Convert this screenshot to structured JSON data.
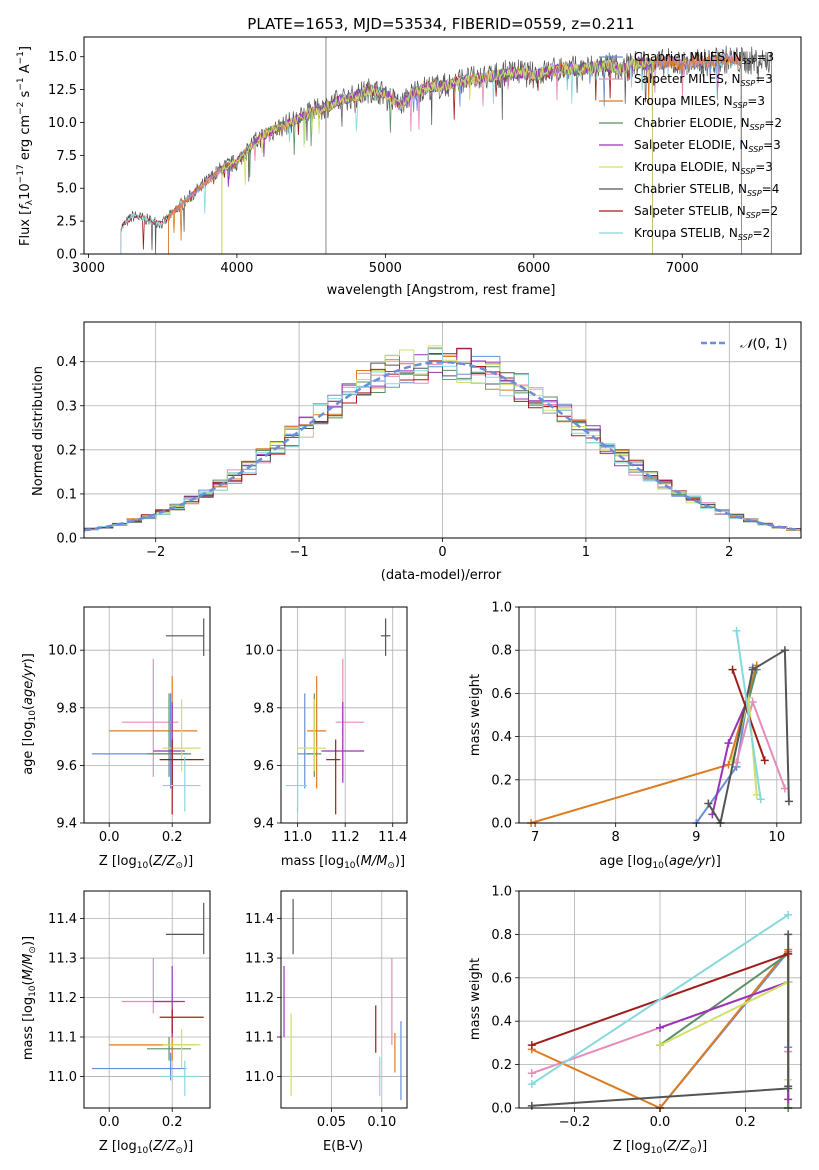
{
  "colors": {
    "Chabrier MILES": "#6a8fd8",
    "Salpeter MILES": "#e58cb9",
    "Kroupa MILES": "#dd7b22",
    "Chabrier ELODIE": "#5b8f66",
    "Salpeter ELODIE": "#9b33b8",
    "Kroupa ELODIE": "#cfe169",
    "Chabrier STELIB": "#555555",
    "Salpeter STELIB": "#a01c1c",
    "Kroupa STELIB": "#86d8df",
    "gauss": "#6a8fd8",
    "grid": "#b0b0b0"
  },
  "chart_data": [
    {
      "type": "line",
      "title": "PLATE=1653, MJD=53534, FIBERID=0559, z=0.211",
      "xlabel": "wavelength [Angstrom, rest frame]",
      "ylabel": "Flux [f_λ 10^-17 erg cm^-2 s^-1 A^-1]",
      "xlim": [
        2970,
        7800
      ],
      "ylim": [
        0,
        16.5
      ],
      "xticks": [
        "3000",
        "4000",
        "5000",
        "6000",
        "7000"
      ],
      "yticks": [
        "0.0",
        "2.5",
        "5.0",
        "7.5",
        "10.0",
        "12.5",
        "15.0"
      ],
      "spectrum_envelope": {
        "x": [
          3220,
          3300,
          3400,
          3500,
          3600,
          3700,
          3800,
          3900,
          4000,
          4100,
          4200,
          4300,
          4400,
          4500,
          4600,
          4700,
          4800,
          4900,
          5000,
          5100,
          5200,
          5300,
          5400,
          5500,
          5600,
          5700,
          5800,
          5900,
          6000,
          6100,
          6200,
          6300,
          6400,
          6500,
          6600,
          6700,
          6800,
          6900,
          7000,
          7100,
          7200,
          7300,
          7400
        ],
        "y": [
          2.0,
          2.9,
          2.6,
          2.3,
          3.5,
          4.5,
          5.5,
          6.5,
          7.0,
          8.3,
          9.2,
          9.7,
          10.2,
          10.8,
          11.2,
          11.7,
          12.0,
          12.5,
          12.2,
          11.3,
          12.4,
          12.7,
          12.8,
          13.2,
          13.3,
          13.5,
          13.7,
          13.8,
          13.6,
          13.9,
          14.1,
          14.0,
          14.2,
          14.3,
          14.1,
          14.5,
          14.4,
          14.6,
          14.4,
          14.5,
          14.6,
          14.8,
          14.7
        ]
      },
      "series": [
        {
          "name": "Chabrier MILES, N_SSP=3",
          "start": 3540,
          "end": 7400
        },
        {
          "name": "Salpeter MILES, N_SSP=3",
          "start": 3540,
          "end": 7400
        },
        {
          "name": "Kroupa MILES, N_SSP=3",
          "start": 3540,
          "end": 7400
        },
        {
          "name": "Chabrier ELODIE, N_SSP=2",
          "start": 3900,
          "end": 6800
        },
        {
          "name": "Salpeter ELODIE, N_SSP=3",
          "start": 3900,
          "end": 6800
        },
        {
          "name": "Kroupa ELODIE, N_SSP=3",
          "start": 3900,
          "end": 6800
        },
        {
          "name": "Chabrier STELIB, N_SSP=4",
          "start": 3220,
          "end": 7600
        },
        {
          "name": "Salpeter STELIB, N_SSP=2",
          "start": 3220,
          "end": 7400
        },
        {
          "name": "Kroupa STELIB, N_SSP=2",
          "start": 3220,
          "end": 7400
        }
      ],
      "legend": "top-right"
    },
    {
      "type": "line",
      "xlabel": "(data-model)/error",
      "ylabel": "Normed distribution",
      "xlim": [
        -2.5,
        2.5
      ],
      "ylim": [
        0,
        0.49
      ],
      "xticks": [
        "−2",
        "−1",
        "0",
        "1",
        "2"
      ],
      "yticks": [
        "0.0",
        "0.1",
        "0.2",
        "0.3",
        "0.4"
      ],
      "legend_entry": "N(0,1)",
      "legend": "top-right",
      "histogram_bin_width": 0.1
    },
    {
      "type": "scatter",
      "xlabel": "Z [log10(Z/Z⊙)]",
      "ylabel": "age [log10(age/yr)]",
      "xlim": [
        -0.08,
        0.32
      ],
      "ylim": [
        9.4,
        10.15
      ],
      "xticks": [
        "0.0",
        "0.2"
      ],
      "yticks": [
        "9.4",
        "9.6",
        "9.8",
        "10.0"
      ],
      "points": [
        {
          "series": "Chabrier MILES",
          "x": 0.195,
          "y": 9.64,
          "xerr": [
            0.25,
            0.05
          ],
          "yerr": [
            0.12,
            0.21
          ]
        },
        {
          "series": "Salpeter MILES",
          "x": 0.14,
          "y": 9.75,
          "xerr": [
            0.1,
            0.08
          ],
          "yerr": [
            0.19,
            0.22
          ]
        },
        {
          "series": "Kroupa MILES",
          "x": 0.2,
          "y": 9.72,
          "xerr": [
            0.2,
            0.08
          ],
          "yerr": [
            0.2,
            0.19
          ]
        },
        {
          "series": "Chabrier ELODIE",
          "x": 0.19,
          "y": 9.64,
          "xerr": [
            0.07,
            0.07
          ],
          "yerr": [
            0.08,
            0.21
          ]
        },
        {
          "series": "Salpeter ELODIE",
          "x": 0.2,
          "y": 9.65,
          "xerr": [
            0.06,
            0.04
          ],
          "yerr": [
            0.11,
            0.17
          ]
        },
        {
          "series": "Kroupa ELODIE",
          "x": 0.23,
          "y": 9.66,
          "xerr": [
            0.06,
            0.06
          ],
          "yerr": [
            0.08,
            0.17
          ]
        },
        {
          "series": "Chabrier STELIB",
          "x": 0.3,
          "y": 10.05,
          "xerr": [
            0.12,
            0.0
          ],
          "yerr": [
            0.07,
            0.06
          ]
        },
        {
          "series": "Salpeter STELIB",
          "x": 0.2,
          "y": 9.62,
          "xerr": [
            0.04,
            0.1
          ],
          "yerr": [
            0.19,
            0.07
          ]
        },
        {
          "series": "Kroupa STELIB",
          "x": 0.24,
          "y": 9.53,
          "xerr": [
            0.07,
            0.05
          ],
          "yerr": [
            0.09,
            0.1
          ]
        }
      ]
    },
    {
      "type": "scatter",
      "xlabel": "mass [log10(M/M⊙)]",
      "ylabel": "",
      "xlim": [
        10.93,
        11.46
      ],
      "ylim": [
        9.4,
        10.15
      ],
      "xticks": [
        "11.0",
        "11.2",
        "11.4"
      ],
      "yticks": [
        "9.4",
        "9.6",
        "9.8",
        "10.0"
      ],
      "points": [
        {
          "series": "Chabrier MILES",
          "x": 11.03,
          "y": 9.64,
          "xerr": [
            0.03,
            0.04
          ],
          "yerr": [
            0.12,
            0.21
          ]
        },
        {
          "series": "Salpeter MILES",
          "x": 11.19,
          "y": 9.75,
          "xerr": [
            0.03,
            0.09
          ],
          "yerr": [
            0.19,
            0.22
          ]
        },
        {
          "series": "Kroupa MILES",
          "x": 11.08,
          "y": 9.72,
          "xerr": [
            0.04,
            0.04
          ],
          "yerr": [
            0.2,
            0.19
          ]
        },
        {
          "series": "Chabrier ELODIE",
          "x": 11.07,
          "y": 9.64,
          "xerr": [
            0.03,
            0.03
          ],
          "yerr": [
            0.08,
            0.21
          ]
        },
        {
          "series": "Salpeter ELODIE",
          "x": 11.19,
          "y": 9.65,
          "xerr": [
            0.09,
            0.09
          ],
          "yerr": [
            0.11,
            0.17
          ]
        },
        {
          "series": "Kroupa ELODIE",
          "x": 11.07,
          "y": 9.66,
          "xerr": [
            0.07,
            0.05
          ],
          "yerr": [
            0.08,
            0.17
          ]
        },
        {
          "series": "Chabrier STELIB",
          "x": 11.37,
          "y": 10.05,
          "xerr": [
            0.02,
            0.02
          ],
          "yerr": [
            0.07,
            0.06
          ]
        },
        {
          "series": "Salpeter STELIB",
          "x": 11.16,
          "y": 9.62,
          "xerr": [
            0.04,
            0.02
          ],
          "yerr": [
            0.19,
            0.07
          ]
        },
        {
          "series": "Kroupa STELIB",
          "x": 11.0,
          "y": 9.53,
          "xerr": [
            0.05,
            0.04
          ],
          "yerr": [
            0.09,
            0.1
          ]
        }
      ]
    },
    {
      "type": "line",
      "xlabel": "age [log10(age/yr)]",
      "ylabel": "mass weight",
      "xlim": [
        6.8,
        10.3
      ],
      "ylim": [
        0,
        1.0
      ],
      "xticks": [
        "7",
        "8",
        "9",
        "10"
      ],
      "yticks": [
        "0.0",
        "0.2",
        "0.4",
        "0.6",
        "0.8",
        "1.0"
      ],
      "series": [
        {
          "name": "Chabrier MILES",
          "x": [
            9.0,
            9.5,
            9.7
          ],
          "y": [
            0.0,
            0.26,
            0.72
          ]
        },
        {
          "name": "Salpeter MILES",
          "x": [
            9.5,
            9.7,
            10.1
          ],
          "y": [
            0.28,
            0.56,
            0.16
          ]
        },
        {
          "name": "Kroupa MILES",
          "x": [
            6.95,
            9.4,
            9.75
          ],
          "y": [
            0.0,
            0.27,
            0.73
          ]
        },
        {
          "name": "Chabrier ELODIE",
          "x": [
            9.45,
            9.75
          ],
          "y": [
            0.29,
            0.71
          ]
        },
        {
          "name": "Salpeter ELODIE",
          "x": [
            9.2,
            9.4,
            9.65
          ],
          "y": [
            0.04,
            0.37,
            0.58
          ]
        },
        {
          "name": "Kroupa ELODIE",
          "x": [
            9.45,
            9.65,
            9.75
          ],
          "y": [
            0.29,
            0.58,
            0.13
          ]
        },
        {
          "name": "Chabrier STELIB",
          "x": [
            9.15,
            9.3,
            9.7,
            10.1,
            10.15
          ],
          "y": [
            0.09,
            0.0,
            0.71,
            0.8,
            0.1
          ]
        },
        {
          "name": "Salpeter STELIB",
          "x": [
            9.45,
            9.85
          ],
          "y": [
            0.71,
            0.29
          ]
        },
        {
          "name": "Kroupa STELIB",
          "x": [
            9.5,
            9.8
          ],
          "y": [
            0.89,
            0.11
          ]
        }
      ]
    },
    {
      "type": "scatter",
      "xlabel": "Z [log10(Z/Z⊙)]",
      "ylabel": "mass [log10(M/M⊙)]",
      "xlim": [
        -0.08,
        0.32
      ],
      "ylim": [
        10.92,
        11.47
      ],
      "xticks": [
        "0.0",
        "0.2"
      ],
      "yticks": [
        "11.0",
        "11.1",
        "11.2",
        "11.3",
        "11.4"
      ],
      "points": [
        {
          "series": "Chabrier MILES",
          "x": 0.195,
          "y": 11.02,
          "xerr": [
            0.25,
            0.05
          ],
          "yerr": [
            0.03,
            0.04
          ]
        },
        {
          "series": "Salpeter MILES",
          "x": 0.14,
          "y": 11.19,
          "xerr": [
            0.1,
            0.08
          ],
          "yerr": [
            0.03,
            0.11
          ]
        },
        {
          "series": "Kroupa MILES",
          "x": 0.2,
          "y": 11.08,
          "xerr": [
            0.2,
            0.08
          ],
          "yerr": [
            0.04,
            0.04
          ]
        },
        {
          "series": "Chabrier ELODIE",
          "x": 0.19,
          "y": 11.07,
          "xerr": [
            0.07,
            0.07
          ],
          "yerr": [
            0.03,
            0.03
          ]
        },
        {
          "series": "Salpeter ELODIE",
          "x": 0.2,
          "y": 11.19,
          "xerr": [
            0.06,
            0.04
          ],
          "yerr": [
            0.09,
            0.09
          ]
        },
        {
          "series": "Kroupa ELODIE",
          "x": 0.23,
          "y": 11.08,
          "xerr": [
            0.06,
            0.06
          ],
          "yerr": [
            0.06,
            0.04
          ]
        },
        {
          "series": "Chabrier STELIB",
          "x": 0.3,
          "y": 11.36,
          "xerr": [
            0.12,
            0.0
          ],
          "yerr": [
            0.05,
            0.08
          ]
        },
        {
          "series": "Salpeter STELIB",
          "x": 0.2,
          "y": 11.15,
          "xerr": [
            0.04,
            0.1
          ],
          "yerr": [
            0.04,
            0.02
          ]
        },
        {
          "series": "Kroupa STELIB",
          "x": 0.24,
          "y": 11.0,
          "xerr": [
            0.07,
            0.05
          ],
          "yerr": [
            0.05,
            0.04
          ]
        }
      ]
    },
    {
      "type": "scatter",
      "xlabel": "E(B-V)",
      "ylabel": "",
      "xlim": [
        0.0,
        0.125
      ],
      "ylim": [
        10.92,
        11.47
      ],
      "xticks": [
        "0.05",
        "0.10"
      ],
      "yticks": [
        "11.0",
        "11.1",
        "11.2",
        "11.3",
        "11.4"
      ],
      "points": [
        {
          "series": "Chabrier STELIB",
          "x": 0.012,
          "y": 11.38,
          "yerr": [
            0.07,
            0.07
          ]
        },
        {
          "series": "Salpeter ELODIE",
          "x": 0.003,
          "y": 11.19,
          "yerr": [
            0.09,
            0.09
          ]
        },
        {
          "series": "Kroupa ELODIE",
          "x": 0.01,
          "y": 11.05,
          "yerr": [
            0.1,
            0.11
          ]
        },
        {
          "series": "Salpeter STELIB",
          "x": 0.094,
          "y": 11.12,
          "yerr": [
            0.06,
            0.06
          ]
        },
        {
          "series": "Kroupa STELIB",
          "x": 0.098,
          "y": 11.0,
          "yerr": [
            0.05,
            0.05
          ]
        },
        {
          "series": "Salpeter MILES",
          "x": 0.11,
          "y": 11.18,
          "yerr": [
            0.1,
            0.12
          ]
        },
        {
          "series": "Kroupa MILES",
          "x": 0.113,
          "y": 11.06,
          "yerr": [
            0.05,
            0.05
          ]
        },
        {
          "series": "Chabrier MILES",
          "x": 0.119,
          "y": 11.04,
          "yerr": [
            0.1,
            0.1
          ]
        }
      ]
    },
    {
      "type": "line",
      "xlabel": "Z [log10(Z/Z⊙)]",
      "ylabel": "mass weight",
      "xlim": [
        -0.33,
        0.33
      ],
      "ylim": [
        0,
        1.0
      ],
      "xticks": [
        "−0.2",
        "0.0",
        "0.2"
      ],
      "yticks": [
        "0.0",
        "0.2",
        "0.4",
        "0.6",
        "0.8",
        "1.0"
      ],
      "series": [
        {
          "name": "Chabrier MILES",
          "x": [
            0.0,
            0.3,
            0.3
          ],
          "y": [
            0.0,
            0.72,
            0.28
          ]
        },
        {
          "name": "Salpeter MILES",
          "x": [
            -0.3,
            0.3,
            0.3
          ],
          "y": [
            0.16,
            0.58,
            0.26
          ]
        },
        {
          "name": "Kroupa MILES",
          "x": [
            -0.3,
            0.0,
            0.3,
            0.3
          ],
          "y": [
            0.27,
            0.0,
            0.73,
            0.0
          ]
        },
        {
          "name": "Chabrier ELODIE",
          "x": [
            0.0,
            0.3,
            0.3
          ],
          "y": [
            0.29,
            0.71,
            0.0
          ]
        },
        {
          "name": "Salpeter ELODIE",
          "x": [
            0.0,
            0.3,
            0.3
          ],
          "y": [
            0.37,
            0.58,
            0.04
          ]
        },
        {
          "name": "Kroupa ELODIE",
          "x": [
            0.0,
            0.3,
            0.3
          ],
          "y": [
            0.29,
            0.58,
            0.13
          ]
        },
        {
          "name": "Chabrier STELIB",
          "x": [
            -0.3,
            0.3,
            0.3,
            0.3
          ],
          "y": [
            0.01,
            0.09,
            0.8,
            0.1
          ]
        },
        {
          "name": "Salpeter STELIB",
          "x": [
            -0.3,
            0.3
          ],
          "y": [
            0.29,
            0.71
          ]
        },
        {
          "name": "Kroupa STELIB",
          "x": [
            -0.3,
            0.3
          ],
          "y": [
            0.11,
            0.89
          ]
        }
      ]
    }
  ]
}
